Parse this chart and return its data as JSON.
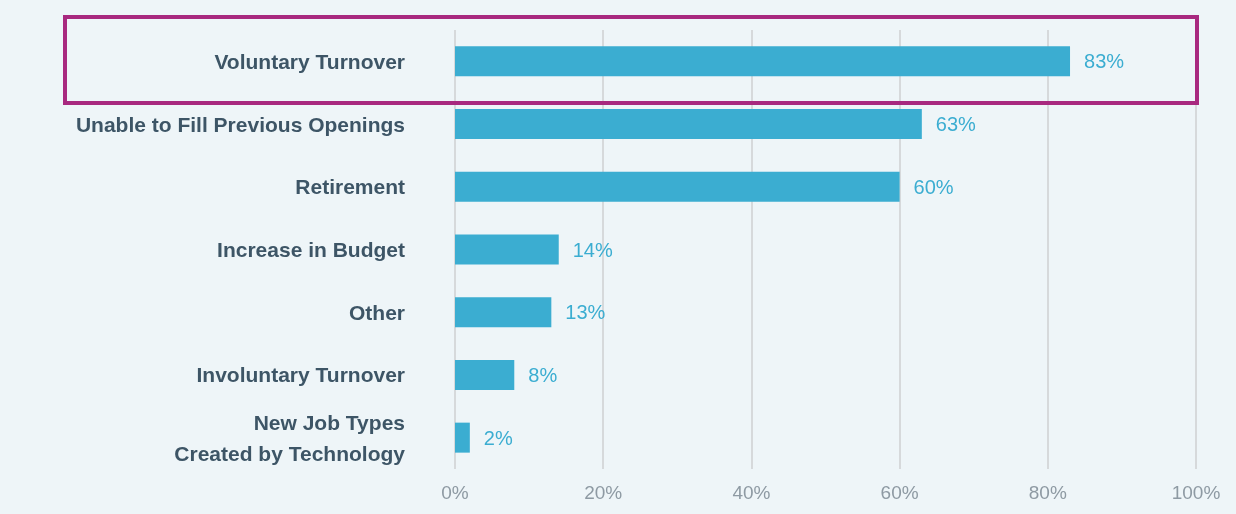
{
  "chart_data": {
    "type": "bar",
    "orientation": "horizontal",
    "categories": [
      "Voluntary Turnover",
      "Unable to Fill Previous Openings",
      "Retirement",
      "Increase in Budget",
      "Other",
      "Involuntary Turnover",
      "New Job Types\nCreated by Technology"
    ],
    "values": [
      83,
      63,
      60,
      14,
      13,
      8,
      2
    ],
    "value_labels": [
      "83%",
      "63%",
      "60%",
      "14%",
      "13%",
      "8%",
      "2%"
    ],
    "color": "#3badd1",
    "xlim": [
      0,
      100
    ],
    "xticks": [
      {
        "value": 0,
        "label": "0%"
      },
      {
        "value": 20,
        "label": "20%"
      },
      {
        "value": 40,
        "label": "40%"
      },
      {
        "value": 60,
        "label": "60%"
      },
      {
        "value": 80,
        "label": "80%"
      },
      {
        "value": 100,
        "label": "100%"
      }
    ],
    "grid": "x"
  }
}
